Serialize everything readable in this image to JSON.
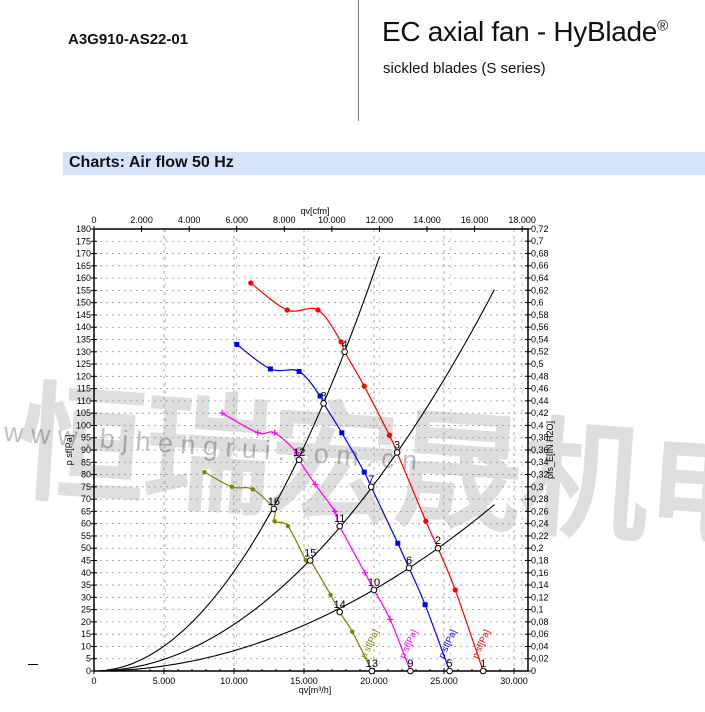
{
  "header": {
    "product_code": "A3G910-AS22-01",
    "title": "EC axial fan - HyBlade",
    "title_mark": "®",
    "subtitle": "sickled blades (S series)"
  },
  "section": {
    "title": "Charts: Air flow 50 Hz"
  },
  "watermark": {
    "text_cn": "恒瑞宏晟机电",
    "text_url": "w w w . b j h e n g r u i . c o m . c n"
  },
  "chart_data": {
    "type": "line",
    "xlabel": "qv[m³/h]",
    "x2label": "qv[cfm]",
    "ylabel": "p sf[Pa]",
    "y2label": "pfs_E[IN H2O]",
    "xlim": [
      0,
      31000
    ],
    "ylim": [
      0,
      180
    ],
    "x_ticks": [
      0,
      5000,
      10000,
      15000,
      20000,
      25000,
      30000
    ],
    "x_tick_labels": [
      "0",
      "5.000",
      "10.000",
      "15.000",
      "20.000",
      "25.000",
      "30.000"
    ],
    "x2_ticks": [
      0,
      2000,
      4000,
      6000,
      8000,
      10000,
      12000,
      14000,
      16000,
      18000
    ],
    "x2_tick_labels": [
      "0",
      "2.000",
      "4.000",
      "6.000",
      "8.000",
      "10.000",
      "12.000",
      "14.000",
      "16.000",
      "18.000"
    ],
    "y_ticks_step": 5,
    "y2_ticks": [
      "0",
      "0,02",
      "0,04",
      "0,06",
      "0,08",
      "0,1",
      "0,12",
      "0,14",
      "0,16",
      "0,18",
      "0,2",
      "0,22",
      "0,24",
      "0,26",
      "0,28",
      "0,3",
      "0,32",
      "0,34",
      "0,36",
      "0,38",
      "0,4",
      "0,42",
      "0,44",
      "0,46",
      "0,48",
      "0,5",
      "0,52",
      "0,54",
      "0,56",
      "0,58",
      "0,6",
      "0,62",
      "0,64",
      "0,66",
      "0,68",
      "0,7",
      "0,72"
    ],
    "grid": true,
    "series": [
      {
        "label": "p sf[Pa]",
        "color": "#ff0000",
        "marker": "circle",
        "points": [
          [
            11200,
            158
          ],
          [
            13800,
            147
          ],
          [
            16000,
            147
          ],
          [
            17650,
            134
          ],
          [
            19300,
            116
          ],
          [
            21100,
            96
          ],
          [
            23700,
            61
          ],
          [
            25800,
            33
          ]
        ],
        "operating_points": [
          {
            "id": "4",
            "x": 17900,
            "y": 130
          },
          {
            "id": "3",
            "x": 21650,
            "y": 89
          },
          {
            "id": "2",
            "x": 24570,
            "y": 50
          },
          {
            "id": "1",
            "x": 27800,
            "y": 0
          }
        ]
      },
      {
        "label": "p sf[Pa]",
        "color": "#0000ff",
        "marker": "square",
        "points": [
          [
            10200,
            133
          ],
          [
            12600,
            123
          ],
          [
            14650,
            122
          ],
          [
            16150,
            112
          ],
          [
            17700,
            97
          ],
          [
            19300,
            81
          ],
          [
            21700,
            52
          ],
          [
            23650,
            27
          ]
        ],
        "operating_points": [
          {
            "id": "8",
            "x": 16400,
            "y": 109
          },
          {
            "id": "7",
            "x": 19800,
            "y": 75
          },
          {
            "id": "6",
            "x": 22500,
            "y": 42
          },
          {
            "id": "5",
            "x": 25400,
            "y": 0
          }
        ]
      },
      {
        "label": "p sf[Pa]",
        "color": "#ff00ff",
        "marker": "plus",
        "points": [
          [
            9150,
            105
          ],
          [
            11700,
            97
          ],
          [
            12900,
            97
          ],
          [
            14500,
            89
          ],
          [
            15800,
            76
          ],
          [
            17200,
            65
          ],
          [
            19350,
            40
          ],
          [
            21150,
            21
          ]
        ],
        "operating_points": [
          {
            "id": "12",
            "x": 14650,
            "y": 86
          },
          {
            "id": "11",
            "x": 17550,
            "y": 59
          },
          {
            "id": "10",
            "x": 20000,
            "y": 33
          },
          {
            "id": "9",
            "x": 22600,
            "y": 0
          }
        ]
      },
      {
        "label": "p sf[Pa]",
        "color": "#808000",
        "marker": "dot",
        "points": [
          [
            7900,
            81
          ],
          [
            9850,
            75
          ],
          [
            11350,
            74
          ],
          [
            12900,
            61
          ],
          [
            13850,
            59
          ],
          [
            15150,
            45
          ],
          [
            16900,
            31
          ],
          [
            18450,
            16
          ]
        ],
        "operating_points": [
          {
            "id": "16",
            "x": 12850,
            "y": 66
          },
          {
            "id": "15",
            "x": 15450,
            "y": 45
          },
          {
            "id": "14",
            "x": 17550,
            "y": 24
          },
          {
            "id": "13",
            "x": 19850,
            "y": 0
          }
        ]
      }
    ],
    "system_curves": [
      {
        "color": "#000000",
        "through": [
          17900,
          130
        ],
        "x_end": 20400
      },
      {
        "color": "#000000",
        "through": [
          21650,
          89
        ],
        "x_end": 28600
      },
      {
        "color": "#000000",
        "through": [
          24570,
          50
        ],
        "x_end": 28600
      }
    ]
  }
}
